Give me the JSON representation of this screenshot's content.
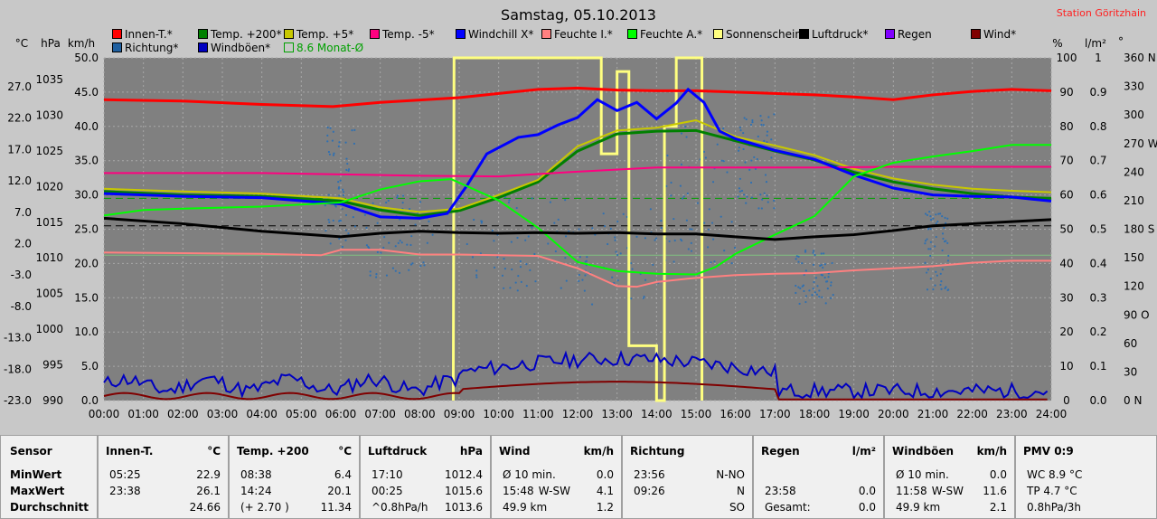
{
  "title": "Samstag, 05.10.2013",
  "station": "Station Göritzhain",
  "legend": [
    {
      "label": "Innen-T.*",
      "color": "#ff0000"
    },
    {
      "label": "Temp. +200*",
      "color": "#008000"
    },
    {
      "label": "Temp. +5*",
      "color": "#c8c800"
    },
    {
      "label": "Temp. -5*",
      "color": "#ff0080"
    },
    {
      "label": "Windchill X*",
      "color": "#0000ff"
    },
    {
      "label": "Feuchte I.*",
      "color": "#ff8080"
    },
    {
      "label": "Feuchte A.*",
      "color": "#00ff00"
    },
    {
      "label": "Sonnenschein",
      "color": "#ffff80"
    },
    {
      "label": "Luftdruck*",
      "color": "#000000"
    },
    {
      "label": "Regen",
      "color": "#8000ff"
    },
    {
      "label": "Wind*",
      "color": "#800000"
    },
    {
      "label": "Richtung*",
      "color": "#2060a0"
    },
    {
      "label": "Windböen*",
      "color": "#0000c0"
    },
    {
      "label": "8.6 Monat-Ø",
      "color": "#00a000"
    }
  ],
  "axis_units": {
    "c": "°C",
    "hpa": "hPa",
    "kmh": "km/h",
    "pct": "%",
    "lm2": "l/m²",
    "deg": "°"
  },
  "chart_data": {
    "type": "line",
    "x_ticks": [
      "00:00",
      "01:00",
      "02:00",
      "03:00",
      "04:00",
      "05:00",
      "06:00",
      "07:00",
      "08:00",
      "09:00",
      "10:00",
      "11:00",
      "12:00",
      "13:00",
      "14:00",
      "15:00",
      "16:00",
      "17:00",
      "18:00",
      "19:00",
      "20:00",
      "21:00",
      "22:00",
      "23:00",
      "24:00"
    ],
    "y_temp_ticks": [
      "27.0",
      "22.0",
      "17.0",
      "12.0",
      "7.0",
      "2.0",
      "-3.0",
      "-8.0",
      "-13.0",
      "-18.0",
      "-23.0"
    ],
    "y_hpa_ticks": [
      "1035",
      "1030",
      "1025",
      "1020",
      "1015",
      "1010",
      "1005",
      "1000",
      "995",
      "990"
    ],
    "y_kmh_ticks": [
      "50.0",
      "45.0",
      "40.0",
      "35.0",
      "30.0",
      "25.0",
      "20.0",
      "15.0",
      "10.0",
      "5.0",
      "0.0"
    ],
    "y_pct_ticks": [
      "100",
      "90",
      "80",
      "70",
      "60",
      "50",
      "40",
      "30",
      "20",
      "10",
      "0"
    ],
    "y_lm2_ticks": [
      "1",
      "0.9",
      "0.8",
      "0.7",
      "0.6",
      "0.5",
      "0.4",
      "0.3",
      "0.2",
      "0.1",
      "0.0"
    ],
    "y_deg_ticks": [
      "360 N",
      "330",
      "300",
      "270 W",
      "240",
      "210",
      "180 S",
      "150",
      "120",
      "90 O",
      "60",
      "30",
      "0  N"
    ],
    "xlim": [
      0,
      24
    ],
    "ylim_kmh": [
      0,
      50
    ],
    "series": [
      {
        "name": "Innen-T.*",
        "color": "#ff0000",
        "x": [
          0,
          2,
          4,
          5.8,
          7,
          9,
          10,
          11,
          12,
          13,
          14,
          15,
          16,
          17,
          18,
          19,
          20,
          21,
          22,
          23,
          24
        ],
        "y": [
          43.9,
          43.7,
          43.2,
          42.9,
          43.5,
          44.2,
          44.8,
          45.4,
          45.6,
          45.3,
          45.2,
          45.2,
          45.0,
          44.8,
          44.6,
          44.3,
          43.9,
          44.6,
          45.1,
          45.4,
          45.2
        ]
      },
      {
        "name": "Temp. +200*",
        "color": "#008000",
        "x": [
          0,
          2,
          4,
          6,
          7,
          8,
          9,
          10,
          11,
          12,
          13,
          14,
          15,
          16,
          17,
          18,
          19,
          20,
          21,
          22,
          23,
          24
        ],
        "y": [
          30.5,
          30.0,
          29.8,
          29.1,
          27.8,
          27.0,
          27.7,
          29.6,
          31.9,
          36.4,
          38.9,
          39.3,
          39.4,
          37.9,
          36.4,
          35.1,
          33.3,
          31.9,
          30.9,
          30.2,
          29.7,
          29.5
        ]
      },
      {
        "name": "Temp. +5*",
        "color": "#c8c800",
        "x": [
          0,
          2,
          4,
          6,
          7,
          8,
          9,
          10,
          11,
          12,
          13,
          14,
          15,
          16,
          17,
          18,
          19,
          20,
          21,
          22,
          23,
          24
        ],
        "y": [
          30.9,
          30.5,
          30.2,
          29.5,
          28.2,
          27.5,
          28.0,
          30.0,
          32.2,
          37.1,
          39.4,
          39.8,
          40.9,
          38.5,
          37.2,
          35.8,
          33.8,
          32.4,
          31.5,
          30.9,
          30.6,
          30.4
        ]
      },
      {
        "name": "Temp. -5*",
        "color": "#ff0080",
        "x": [
          0,
          2,
          4,
          6,
          8,
          10,
          12,
          14,
          16,
          18,
          20,
          22,
          24
        ],
        "y": [
          33.2,
          33.2,
          33.2,
          33.0,
          32.8,
          32.7,
          33.4,
          34.0,
          34.0,
          34.0,
          34.1,
          34.1,
          34.1
        ]
      },
      {
        "name": "Windchill X*",
        "color": "#0000ff",
        "x": [
          0,
          2,
          4,
          6,
          7,
          8,
          8.7,
          9.2,
          9.7,
          10.5,
          11,
          11.5,
          12,
          12.5,
          13,
          13.5,
          14,
          14.5,
          14.8,
          15.2,
          15.6,
          16,
          17,
          18,
          19,
          20,
          21,
          22,
          23,
          24
        ],
        "y": [
          30.2,
          29.8,
          29.6,
          28.7,
          26.8,
          26.6,
          27.3,
          31.4,
          36.0,
          38.4,
          38.8,
          40.2,
          41.3,
          43.9,
          42.3,
          43.5,
          41.1,
          43.4,
          45.4,
          43.5,
          39.3,
          38.2,
          36.5,
          35.2,
          32.9,
          31.0,
          30.0,
          29.8,
          29.7,
          29.1
        ]
      },
      {
        "name": "Feuchte I.*",
        "color": "#ff8080",
        "x": [
          0,
          2,
          4,
          5.5,
          6,
          7,
          8,
          9,
          10,
          11,
          12,
          13,
          13.5,
          14,
          15,
          16,
          17,
          18,
          19,
          20,
          21,
          22,
          23,
          24
        ],
        "y": [
          21.6,
          21.5,
          21.4,
          21.2,
          22.0,
          22.0,
          21.3,
          21.3,
          21.2,
          21.1,
          19.3,
          16.7,
          16.6,
          17.3,
          17.9,
          18.3,
          18.5,
          18.6,
          19.0,
          19.3,
          19.6,
          20.1,
          20.4,
          20.4
        ]
      },
      {
        "name": "Feuchte A.*",
        "color": "#00ff00",
        "x": [
          0,
          1,
          2,
          4,
          6,
          7,
          8,
          8.8,
          10,
          11,
          12,
          13,
          14,
          15,
          15.5,
          16,
          17,
          18,
          19,
          20,
          21,
          22,
          23,
          24
        ],
        "y": [
          27.0,
          27.8,
          28.0,
          28.3,
          28.9,
          30.8,
          32.0,
          32.3,
          29.2,
          25.2,
          20.2,
          18.9,
          18.5,
          18.4,
          19.5,
          21.4,
          24.2,
          26.9,
          32.7,
          34.7,
          35.6,
          36.4,
          37.3,
          37.3
        ]
      },
      {
        "name": "Luftdruck*",
        "color": "#000000",
        "x": [
          0,
          2,
          4,
          6,
          7,
          8,
          9,
          10,
          11,
          12,
          13,
          14,
          15,
          16,
          17,
          18,
          19,
          20,
          21,
          22,
          23,
          24
        ],
        "y": [
          26.6,
          25.8,
          24.7,
          23.9,
          24.4,
          24.7,
          24.5,
          24.4,
          24.5,
          24.4,
          24.5,
          24.3,
          24.3,
          23.9,
          23.5,
          23.9,
          24.2,
          24.8,
          25.5,
          25.8,
          26.1,
          26.4
        ]
      }
    ],
    "sun_segments": [
      [
        8.87,
        9.0,
        50
      ],
      [
        9.0,
        12.6,
        50
      ],
      [
        12.6,
        13.0,
        36
      ],
      [
        13.0,
        13.3,
        48
      ],
      [
        13.3,
        14.0,
        8
      ],
      [
        14.0,
        14.2,
        0
      ],
      [
        14.2,
        14.5,
        40
      ],
      [
        14.5,
        15.15,
        50
      ]
    ],
    "ref_lines": [
      {
        "y": 25.5,
        "color": "#000000",
        "dash": true
      },
      {
        "y": 29.5,
        "color": "#00a000",
        "dash": true
      },
      {
        "y": 21.2,
        "color": "#80c080",
        "dash": false
      }
    ],
    "wind_gust_color": "#0000c0",
    "wind_color": "#800000",
    "direction_color": "#3070b0"
  },
  "table": {
    "sensor": {
      "hdr": "Sensor",
      "rows": [
        "MinWert",
        "MaxWert",
        "Durchschnitt"
      ]
    },
    "columns": [
      {
        "name": "Innen-T.",
        "unit": "°C",
        "rows": [
          [
            "05:25",
            "",
            "22.9"
          ],
          [
            "23:38",
            "",
            "26.1"
          ],
          [
            "",
            "",
            "24.66"
          ]
        ]
      },
      {
        "name": "Temp. +200",
        "unit": "°C",
        "rows": [
          [
            "08:38",
            "",
            "6.4"
          ],
          [
            "14:24",
            "",
            "20.1"
          ],
          [
            "(+ 2.70 )",
            "",
            "11.34"
          ]
        ]
      },
      {
        "name": "Luftdruck",
        "unit": "hPa",
        "rows": [
          [
            "17:10",
            "",
            "1012.4"
          ],
          [
            "00:25",
            "",
            "1015.6"
          ],
          [
            "^0.8hPa/h",
            "",
            "1013.6"
          ]
        ]
      },
      {
        "name": "Wind",
        "unit": "km/h",
        "rows": [
          [
            "Ø 10 min.",
            "",
            "0.0"
          ],
          [
            "15:48",
            "W-SW",
            "4.1"
          ],
          [
            "49.9 km",
            "",
            "1.2"
          ]
        ]
      },
      {
        "name": "Richtung",
        "unit": "",
        "rows": [
          [
            "23:56",
            "",
            "N-NO"
          ],
          [
            "09:26",
            "",
            "N"
          ],
          [
            "",
            "",
            "SO"
          ]
        ]
      },
      {
        "name": "Regen",
        "unit": "l/m²",
        "rows": [
          [
            "",
            "",
            ""
          ],
          [
            "23:58",
            "",
            "0.0"
          ],
          [
            "Gesamt:",
            "",
            "0.0"
          ]
        ]
      },
      {
        "name": "Windböen",
        "unit": "km/h",
        "rows": [
          [
            "Ø 10 min.",
            "",
            "0.0"
          ],
          [
            "11:58",
            "W-SW",
            "11.6"
          ],
          [
            "49.9 km",
            "",
            "2.1"
          ]
        ]
      },
      {
        "name": "PMV 0:9",
        "unit": "",
        "rows": [
          [
            "WC 8.9 °C",
            "",
            ""
          ],
          [
            "TP 4.7 °C",
            "",
            ""
          ],
          [
            "0.8hPa/3h",
            "",
            ""
          ]
        ]
      }
    ]
  }
}
